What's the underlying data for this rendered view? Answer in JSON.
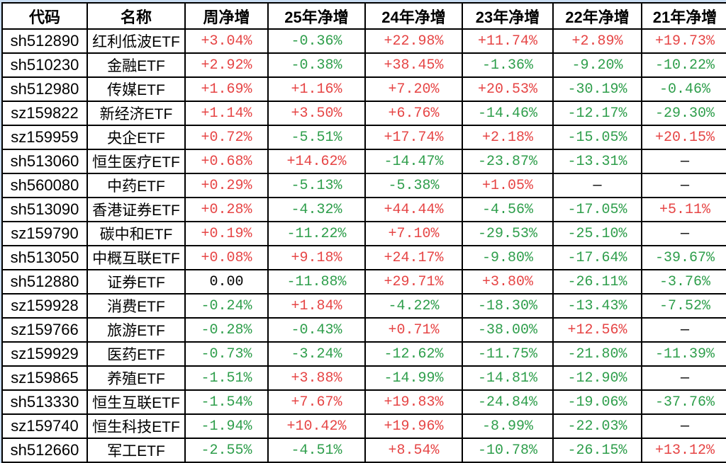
{
  "theme": {
    "red": "#e64545",
    "green": "#2e9e4b",
    "ink": "#000000",
    "border": "#000000",
    "page_bg": "#c9ddf2",
    "cell_bg": "#ffffff"
  },
  "chart_data": {
    "type": "table",
    "columns": [
      "代码",
      "名称",
      "周净增",
      "25年净增",
      "24年净增",
      "23年净增",
      "22年净增",
      "21年净增"
    ],
    "value_color_rule": {
      "plus": "red",
      "minus": "green",
      "other": "black"
    },
    "rows": [
      {
        "code": "sh512890",
        "name": "红利低波ETF",
        "values": [
          "+3.04%",
          "-0.36%",
          "+22.98%",
          "+11.74%",
          "+2.89%",
          "+19.73%"
        ]
      },
      {
        "code": "sh510230",
        "name": "金融ETF",
        "values": [
          "+2.92%",
          "-0.38%",
          "+38.45%",
          "-1.36%",
          "-9.20%",
          "-10.22%"
        ]
      },
      {
        "code": "sh512980",
        "name": "传媒ETF",
        "values": [
          "+1.69%",
          "+1.16%",
          "+7.20%",
          "+20.53%",
          "-30.19%",
          "-0.46%"
        ]
      },
      {
        "code": "sz159822",
        "name": "新经济ETF",
        "values": [
          "+1.14%",
          "+3.50%",
          "+6.76%",
          "-14.46%",
          "-12.17%",
          "-29.30%"
        ]
      },
      {
        "code": "sz159959",
        "name": "央企ETF",
        "values": [
          "+0.72%",
          "-5.51%",
          "+17.74%",
          "+2.18%",
          "-15.05%",
          "+20.15%"
        ]
      },
      {
        "code": "sh513060",
        "name": "恒生医疗ETF",
        "values": [
          "+0.68%",
          "+14.62%",
          "-14.47%",
          "-23.87%",
          "-13.31%",
          "—"
        ]
      },
      {
        "code": "sh560080",
        "name": "中药ETF",
        "values": [
          "+0.29%",
          "-5.13%",
          "-5.38%",
          "+1.05%",
          "—",
          "—"
        ]
      },
      {
        "code": "sh513090",
        "name": "香港证券ETF",
        "values": [
          "+0.28%",
          "-4.32%",
          "+44.44%",
          "-4.56%",
          "-17.05%",
          "+5.11%"
        ]
      },
      {
        "code": "sz159790",
        "name": "碳中和ETF",
        "values": [
          "+0.19%",
          "-11.22%",
          "+7.10%",
          "-29.53%",
          "-25.10%",
          "—"
        ]
      },
      {
        "code": "sh513050",
        "name": "中概互联ETF",
        "values": [
          "+0.08%",
          "+9.18%",
          "+24.17%",
          "-9.80%",
          "-17.64%",
          "-39.67%"
        ]
      },
      {
        "code": "sh512880",
        "name": "证券ETF",
        "values": [
          "0.00",
          "-11.88%",
          "+29.71%",
          "+3.80%",
          "-26.11%",
          "-3.76%"
        ]
      },
      {
        "code": "sz159928",
        "name": "消费ETF",
        "values": [
          "-0.24%",
          "+1.84%",
          "-4.22%",
          "-18.30%",
          "-13.43%",
          "-7.52%"
        ]
      },
      {
        "code": "sz159766",
        "name": "旅游ETF",
        "values": [
          "-0.28%",
          "-0.43%",
          "+0.71%",
          "-38.00%",
          "+12.56%",
          "—"
        ]
      },
      {
        "code": "sz159929",
        "name": "医药ETF",
        "values": [
          "-0.73%",
          "-3.24%",
          "-12.62%",
          "-11.75%",
          "-21.80%",
          "-11.39%"
        ]
      },
      {
        "code": "sz159865",
        "name": "养殖ETF",
        "values": [
          "-1.51%",
          "+3.88%",
          "-14.99%",
          "-14.81%",
          "-12.90%",
          "—"
        ]
      },
      {
        "code": "sh513330",
        "name": "恒生互联ETF",
        "values": [
          "-1.54%",
          "+7.67%",
          "+19.83%",
          "-24.84%",
          "-19.06%",
          "-37.76%"
        ]
      },
      {
        "code": "sz159740",
        "name": "恒生科技ETF",
        "values": [
          "-1.94%",
          "+10.42%",
          "+19.96%",
          "-8.99%",
          "-22.03%",
          "—"
        ]
      },
      {
        "code": "sh512660",
        "name": "军工ETF",
        "values": [
          "-2.55%",
          "-4.51%",
          "+8.54%",
          "-10.78%",
          "-26.15%",
          "+13.12%"
        ]
      }
    ]
  }
}
